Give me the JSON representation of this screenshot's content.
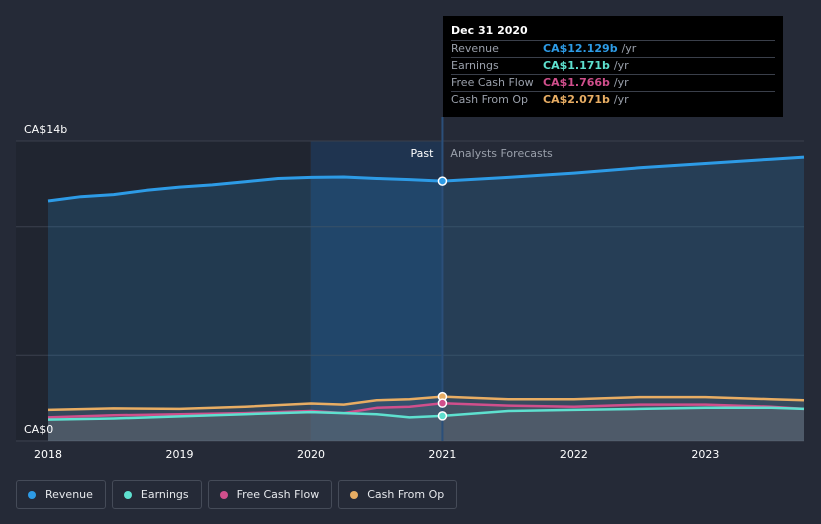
{
  "tooltip": {
    "date": "Dec 31 2020",
    "unit": "/yr",
    "rows": [
      {
        "label": "Revenue",
        "value": "CA$12.129b",
        "color": "#2d9be6"
      },
      {
        "label": "Earnings",
        "value": "CA$1.171b",
        "color": "#5ee0cf"
      },
      {
        "label": "Free Cash Flow",
        "value": "CA$1.766b",
        "color": "#d04f8c"
      },
      {
        "label": "Cash From Op",
        "value": "CA$2.071b",
        "color": "#e8ad63"
      }
    ]
  },
  "labels": {
    "past": "Past",
    "forecast": "Analysts Forecasts"
  },
  "legend": [
    {
      "label": "Revenue",
      "color": "#2d9be6"
    },
    {
      "label": "Earnings",
      "color": "#5ee0cf"
    },
    {
      "label": "Free Cash Flow",
      "color": "#d04f8c"
    },
    {
      "label": "Cash From Op",
      "color": "#e8ad63"
    }
  ],
  "chart_data": {
    "type": "area",
    "ylim": [
      0,
      14
    ],
    "xlim": [
      2018.0,
      2023.75
    ],
    "y_tick_labels": [
      {
        "value": 14,
        "label": "CA$14b"
      },
      {
        "value": 0,
        "label": "CA$0"
      }
    ],
    "x_tick_labels": [
      {
        "value": 2018,
        "label": "2018"
      },
      {
        "value": 2019,
        "label": "2019"
      },
      {
        "value": 2020,
        "label": "2020"
      },
      {
        "value": 2021,
        "label": "2021"
      },
      {
        "value": 2022,
        "label": "2022"
      },
      {
        "value": 2023,
        "label": "2023"
      }
    ],
    "past_end": 2021.0,
    "highlight_start": 2020.0,
    "series": [
      {
        "name": "Revenue",
        "color": "#2d9be6",
        "fill": true,
        "x": [
          2018.0,
          2018.25,
          2018.5,
          2018.75,
          2019.0,
          2019.25,
          2019.5,
          2019.75,
          2020.0,
          2020.25,
          2020.5,
          2020.75,
          2021.0,
          2021.5,
          2022.0,
          2022.5,
          2023.0,
          2023.5,
          2023.75
        ],
        "values": [
          11.2,
          11.4,
          11.5,
          11.7,
          11.85,
          11.95,
          12.1,
          12.25,
          12.3,
          12.32,
          12.25,
          12.2,
          12.129,
          12.3,
          12.5,
          12.75,
          12.95,
          13.15,
          13.25
        ]
      },
      {
        "name": "Cash From Op",
        "color": "#e8ad63",
        "fill": false,
        "x": [
          2018.0,
          2018.5,
          2019.0,
          2019.5,
          2020.0,
          2020.25,
          2020.5,
          2020.75,
          2021.0,
          2021.5,
          2022.0,
          2022.5,
          2023.0,
          2023.5,
          2023.75
        ],
        "values": [
          1.45,
          1.52,
          1.5,
          1.6,
          1.75,
          1.7,
          1.9,
          1.95,
          2.071,
          1.95,
          1.95,
          2.05,
          2.05,
          1.95,
          1.9
        ]
      },
      {
        "name": "Free Cash Flow",
        "color": "#d04f8c",
        "fill": false,
        "x": [
          2018.0,
          2018.5,
          2019.0,
          2019.5,
          2020.0,
          2020.25,
          2020.5,
          2020.75,
          2021.0,
          2021.5,
          2022.0,
          2022.5,
          2023.0,
          2023.5,
          2023.75
        ],
        "values": [
          1.1,
          1.2,
          1.25,
          1.3,
          1.4,
          1.3,
          1.55,
          1.6,
          1.766,
          1.65,
          1.6,
          1.7,
          1.7,
          1.6,
          1.5
        ]
      },
      {
        "name": "Earnings",
        "color": "#5ee0cf",
        "fill": false,
        "x": [
          2018.0,
          2018.5,
          2019.0,
          2019.5,
          2020.0,
          2020.25,
          2020.5,
          2020.75,
          2021.0,
          2021.5,
          2022.0,
          2022.5,
          2023.0,
          2023.5,
          2023.75
        ],
        "values": [
          1.0,
          1.05,
          1.15,
          1.25,
          1.35,
          1.3,
          1.25,
          1.1,
          1.171,
          1.4,
          1.45,
          1.5,
          1.55,
          1.55,
          1.5
        ]
      }
    ]
  }
}
